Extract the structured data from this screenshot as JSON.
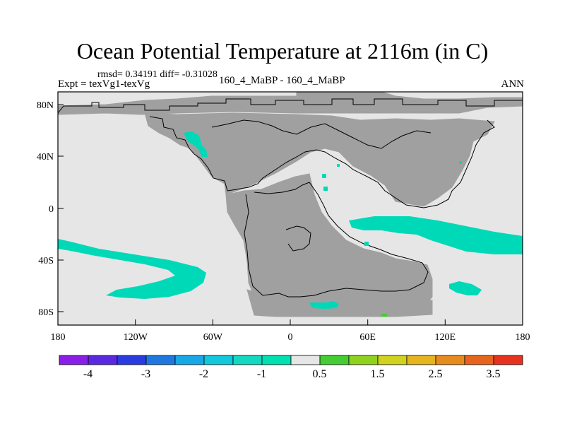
{
  "figure": {
    "title": "Ocean Potential Temperature at 2116m (in C)",
    "stats_line": "rmsd= 0.34191 diff= -0.31028",
    "experiment_line": "Expt = texVg1-texVg",
    "case_line": "160_4_MaBP - 160_4_MaBP",
    "season": "ANN"
  },
  "map": {
    "projection": "cylindrical equidistant",
    "lon_range": [
      -180,
      180
    ],
    "lat_range": [
      -90,
      90
    ],
    "x_tick_labels": [
      "180",
      "120W",
      "60W",
      "0",
      "60E",
      "120E",
      "180"
    ],
    "y_tick_labels": [
      "80N",
      "40N",
      "0",
      "40S",
      "80S"
    ],
    "colors": {
      "land": "#a0a0a0",
      "ocean_near_zero": "#e6e6e6",
      "anomaly_minus_1": "#00d9b8",
      "anomaly_plus_0_5": "#44cc33"
    }
  },
  "colorbar": {
    "labels": [
      "-4",
      "-3",
      "-2",
      "-1",
      "0.5",
      "1.5",
      "2.5",
      "3.5"
    ],
    "colors": [
      "#8a1ee6",
      "#5a28e0",
      "#2a3ce0",
      "#1f78e0",
      "#18a8e8",
      "#12c8dc",
      "#14d8c0",
      "#00e0b0",
      "#e6e6e6",
      "#44cc33",
      "#8fd21e",
      "#cfd21e",
      "#e6b41e",
      "#e68c1e",
      "#e6641e",
      "#e6321e"
    ]
  }
}
